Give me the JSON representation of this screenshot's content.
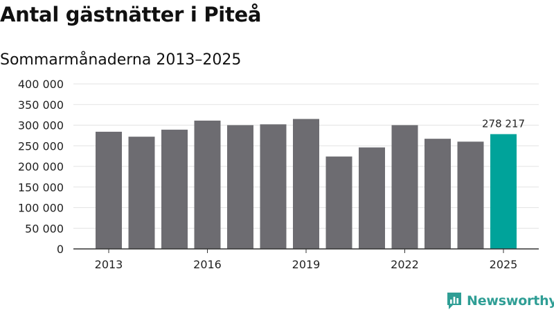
{
  "title": "Antal gästnätter i Piteå",
  "subtitle": "Sommarmånaderna 2013–2025",
  "brand": {
    "name": "Newsworthy",
    "icon": "newsworthy-logo-icon",
    "color": "#2f9e95"
  },
  "chart_data": {
    "type": "bar",
    "categories": [
      "2013",
      "2014",
      "2015",
      "2016",
      "2017",
      "2018",
      "2019",
      "2020",
      "2021",
      "2022",
      "2023",
      "2024",
      "2025"
    ],
    "x_tick_labels": [
      "2013",
      "2016",
      "2019",
      "2022",
      "2025"
    ],
    "values": [
      284000,
      272000,
      289000,
      311000,
      300000,
      302000,
      315000,
      224000,
      246000,
      300000,
      267000,
      260000,
      278217
    ],
    "ylim": [
      0,
      400000
    ],
    "yticks": [
      0,
      50000,
      100000,
      150000,
      200000,
      250000,
      300000,
      350000,
      400000
    ],
    "ytick_labels": [
      "0",
      "50 000",
      "100 000",
      "150 000",
      "200 000",
      "250 000",
      "300 000",
      "350 000",
      "400 000"
    ],
    "highlight": {
      "category": "2025",
      "label": "278 217"
    },
    "colors": {
      "bar": "#6d6c71",
      "highlight": "#00a39a",
      "grid": "#e3e3e3",
      "axis": "#333333"
    },
    "grid": true
  }
}
